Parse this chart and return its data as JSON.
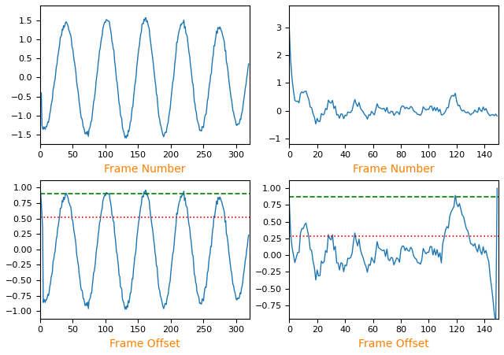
{
  "fig_width": 6.4,
  "fig_height": 4.51,
  "dpi": 100,
  "top_left": {
    "xlabel": "Frame Number",
    "xlabel_color": "#ff8000",
    "ylim": [
      -1.75,
      1.9
    ],
    "yticks": [
      -1.5,
      -1.0,
      -0.5,
      0.0,
      0.5,
      1.0,
      1.5
    ],
    "xlim": [
      0,
      320
    ],
    "xticks": [
      0,
      50,
      100,
      150,
      200,
      250,
      300
    ]
  },
  "top_right": {
    "xlabel": "Frame Number",
    "xlabel_color": "#ff8000",
    "ylim": [
      -1.2,
      3.8
    ],
    "yticks": [
      -1,
      0,
      1,
      2,
      3
    ],
    "xlim": [
      0,
      150
    ],
    "xticks": [
      0,
      20,
      40,
      60,
      80,
      100,
      120,
      140
    ]
  },
  "bottom_left": {
    "xlabel": "Frame Offset",
    "xlabel_color": "#ff8000",
    "ylim": [
      -1.12,
      1.12
    ],
    "yticks": [
      -1.0,
      -0.75,
      -0.5,
      -0.25,
      0.0,
      0.25,
      0.5,
      0.75,
      1.0
    ],
    "xlim": [
      0,
      320
    ],
    "xticks": [
      0,
      50,
      100,
      150,
      200,
      250,
      300
    ],
    "green_line": 0.9,
    "red_line": 0.525
  },
  "bottom_right": {
    "xlabel": "Frame Offset",
    "xlabel_color": "#ff8000",
    "ylim": [
      -0.95,
      1.12
    ],
    "yticks": [
      -0.75,
      -0.5,
      -0.25,
      0.0,
      0.25,
      0.5,
      0.75,
      1.0
    ],
    "xlim": [
      0,
      150
    ],
    "xticks": [
      0,
      20,
      40,
      60,
      80,
      100,
      120,
      140
    ],
    "green_line": 0.875,
    "red_line": 0.28
  },
  "line_color": "#1f77b4",
  "line_width": 1.0
}
